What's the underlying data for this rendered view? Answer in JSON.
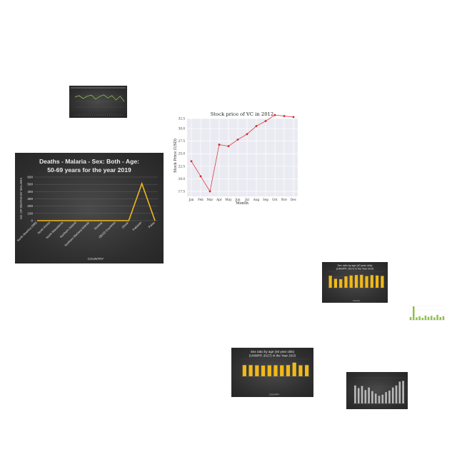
{
  "chart_data": [
    {
      "id": "malaria",
      "type": "line",
      "title": "Deaths - Malaria - Sex: Both - Age: 50-69 years for the year 2019",
      "title_lines": [
        "Deaths - Malaria - Sex: Both - Age:",
        "50-69 years for the year 2019"
      ],
      "xlabel": "COUNTRY",
      "ylabel": "NO. OF DEATHS BY MALARIA",
      "ylim": [
        0,
        600
      ],
      "yticks": [
        0,
        100,
        200,
        300,
        400,
        500,
        600
      ],
      "categories": [
        "North America (WB)",
        "North Korea",
        "North Macedonia",
        "Northern Ireland",
        "Northern Mariana Islands",
        "Norway",
        "OECD Countries",
        "Oman",
        "Pakistan",
        "Palau"
      ],
      "values": [
        0,
        0,
        0,
        0,
        0,
        0,
        0,
        0,
        510,
        0
      ],
      "grid": true,
      "colors": {
        "line": "#f0b91a",
        "bg": "#333333",
        "text": "#e8e8e8"
      }
    },
    {
      "id": "stock",
      "type": "line",
      "title": "Stock price of VC in 2012",
      "xlabel": "Month",
      "ylabel": "Stock Price (USD)",
      "ylim": [
        16.5,
        32
      ],
      "yticks": [
        "17.5",
        "20.0",
        "22.5",
        "25.0",
        "27.5",
        "30.0",
        "32.5"
      ],
      "categories": [
        "Jan",
        "Feb",
        "Mar",
        "Apr",
        "May",
        "Jun",
        "Jul",
        "Aug",
        "Sep",
        "Oct",
        "Nov",
        "Dec"
      ],
      "values": [
        23.5,
        20.5,
        17.5,
        26.8,
        26.5,
        27.8,
        28.9,
        30.5,
        31.5,
        32.7,
        32.5,
        32.3
      ],
      "grid": true,
      "colors": {
        "line": "#d62728",
        "bg": "#eaeaf2"
      }
    },
    {
      "id": "green-thumb",
      "type": "line",
      "values": [
        55,
        60,
        50,
        58,
        62,
        48,
        57,
        63,
        52,
        60,
        45,
        58,
        40
      ],
      "ylim": [
        0,
        80
      ],
      "colors": {
        "line": "#8fbf4f",
        "bg": "#333333"
      }
    },
    {
      "id": "sex-ratio-small",
      "type": "bar",
      "title_lines": [
        "Sex ratio by age (40 year olds)",
        "(UNWPP, 2017) in the Year 2015"
      ],
      "xlabel": "Country",
      "values": [
        110,
        82,
        78,
        104,
        112,
        116,
        118,
        106,
        115,
        112,
        108
      ],
      "ylim": [
        0,
        150
      ],
      "colors": {
        "bar": "#f0b91a",
        "bg": "#333333"
      }
    },
    {
      "id": "sex-ratio-medium",
      "type": "bar",
      "title_lines": [
        "Sex ratio by age (40 year olds)",
        "(UNWPP, 2017) in the Year 2015"
      ],
      "xlabel": "COUNTRY",
      "values": [
        98,
        98,
        96,
        94,
        96,
        97,
        96,
        98,
        120,
        96,
        98
      ],
      "ylim": [
        0,
        150
      ],
      "colors": {
        "bar": "#f0b91a",
        "bg": "#333333"
      }
    },
    {
      "id": "grey-bars",
      "type": "bar",
      "values": [
        70,
        60,
        68,
        52,
        62,
        48,
        38,
        30,
        34,
        44,
        50,
        62,
        70,
        85,
        88
      ],
      "ylim": [
        0,
        100
      ],
      "colors": {
        "bar": "#b8b8b8",
        "bg": "#333333"
      }
    },
    {
      "id": "green-bars",
      "type": "bar",
      "values": [
        20,
        95,
        18,
        25,
        15,
        30,
        22,
        28,
        18,
        35,
        20,
        26
      ],
      "ylim": [
        0,
        100
      ],
      "colors": {
        "bar": "#8fbf4f",
        "bg": "#ffffff"
      }
    }
  ]
}
